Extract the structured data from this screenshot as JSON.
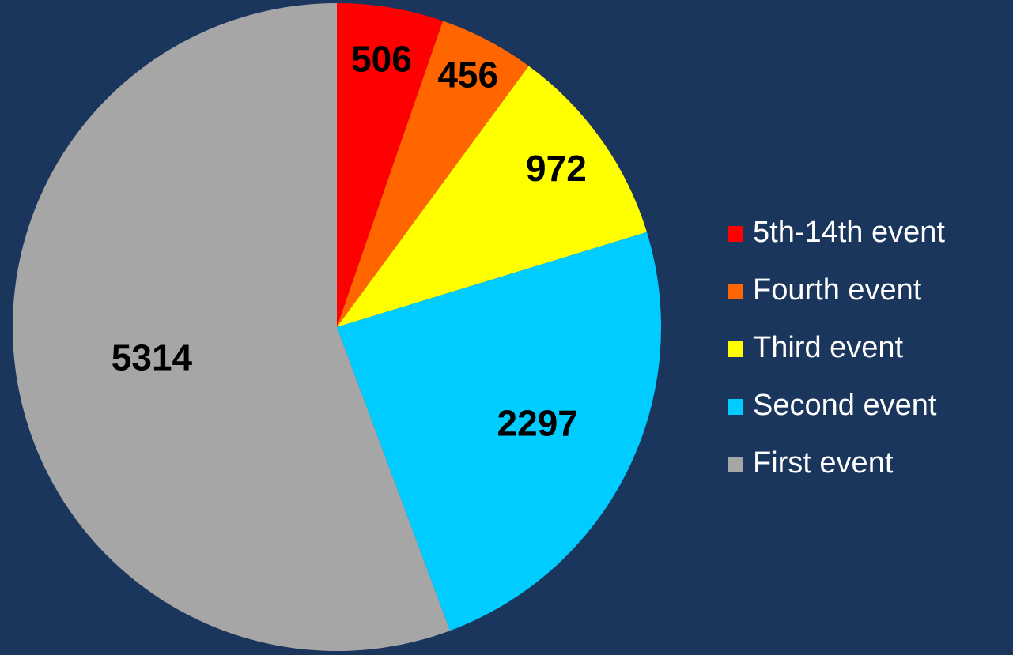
{
  "chart_data": {
    "type": "pie",
    "categories": [
      "5th-14th event",
      "Fourth event",
      "Third event",
      "Second event",
      "First event"
    ],
    "values": [
      506,
      456,
      972,
      2297,
      5314
    ],
    "colors": [
      "#ff0000",
      "#ff6600",
      "#ffff00",
      "#00ccff",
      "#a6a6a6"
    ],
    "legend": "right"
  }
}
